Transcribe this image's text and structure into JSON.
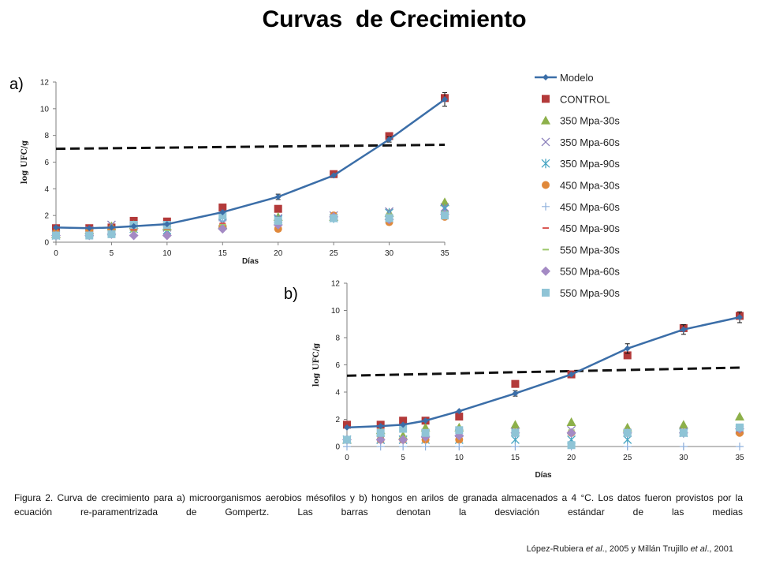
{
  "title": "Curvas  de Crecimiento",
  "panel_labels": [
    "a)",
    "b)"
  ],
  "caption": "Figura 2. Curva de crecimiento para a) microorganismos aerobios mésofilos y b) hongos en arilos de granada almacenados a 4 °C. Los datos fueron provistos por la ecuación re-paramentrizada de Gompertz. Las barras denotan la desviación estándar de las medias",
  "citation": {
    "part1": "López-Rubiera ",
    "etal1": "et al",
    "part2": "., 2005 y Millán Trujillo ",
    "etal2": "et al",
    "part3": "., 2001"
  },
  "legend": [
    {
      "label": "Modelo",
      "marker": "line-diamond",
      "color": "#3b6ea8"
    },
    {
      "label": "CONTROL",
      "marker": "square",
      "color": "#b33a3a"
    },
    {
      "label": "350 Mpa-30s",
      "marker": "triangle",
      "color": "#8db04a"
    },
    {
      "label": "350 Mpa-60s",
      "marker": "x",
      "color": "#8a7fba"
    },
    {
      "label": "350 Mpa-90s",
      "marker": "star",
      "color": "#4aa7c4"
    },
    {
      "label": "450 Mpa-30s",
      "marker": "circle",
      "color": "#e0883a"
    },
    {
      "label": "450 Mpa-60s",
      "marker": "plus",
      "color": "#8fb0dc"
    },
    {
      "label": "450 Mpa-90s",
      "marker": "dash",
      "color": "#d9534f"
    },
    {
      "label": "550 Mpa-30s",
      "marker": "dash",
      "color": "#9cc86a"
    },
    {
      "label": "550 Mpa-60s",
      "marker": "diamond",
      "color": "#a48ac4"
    },
    {
      "label": "550 Mpa-90s",
      "marker": "square",
      "color": "#8fc4d6"
    }
  ],
  "chart_data": [
    {
      "type": "scatter",
      "panel": "a)",
      "xlabel": "Días",
      "ylabel": "log UFC/g",
      "xlim": [
        0,
        35
      ],
      "ylim": [
        0,
        12
      ],
      "xticks": [
        0,
        5,
        10,
        15,
        20,
        25,
        30,
        35
      ],
      "yticks": [
        0,
        2,
        4,
        6,
        8,
        10,
        12
      ],
      "grid": false,
      "legend_position": "right",
      "threshold_line": {
        "x": [
          0,
          35
        ],
        "y": [
          7.0,
          7.3
        ],
        "style": "dashed"
      },
      "series": [
        {
          "name": "Modelo",
          "x": [
            0,
            3,
            5,
            7,
            10,
            15,
            20,
            25,
            30,
            35
          ],
          "y": [
            1.1,
            1.05,
            1.1,
            1.2,
            1.35,
            2.25,
            3.4,
            5.0,
            7.7,
            10.7
          ],
          "errors": [
            0,
            0,
            0,
            0,
            0,
            0,
            0.2,
            0,
            0.2,
            0.5
          ]
        },
        {
          "name": "CONTROL",
          "x": [
            0,
            3,
            5,
            7,
            10,
            15,
            20,
            25,
            30,
            35
          ],
          "y": [
            1.05,
            1.05,
            1.1,
            1.6,
            1.55,
            2.6,
            2.5,
            5.1,
            7.95,
            10.8
          ]
        },
        {
          "name": "350 Mpa-30s",
          "x": [
            0,
            3,
            5,
            7,
            10,
            15,
            20,
            25,
            30,
            35
          ],
          "y": [
            0.6,
            0.9,
            1.2,
            1.3,
            1.2,
            1.3,
            1.9,
            1.9,
            2.2,
            3.0
          ]
        },
        {
          "name": "350 Mpa-60s",
          "x": [
            0,
            3,
            5,
            7,
            10,
            15,
            20,
            25,
            30,
            35
          ],
          "y": [
            0.6,
            0.9,
            1.3,
            1.2,
            1.1,
            1.4,
            1.8,
            2.0,
            2.3,
            2.6
          ]
        },
        {
          "name": "350 Mpa-90s",
          "x": [
            0,
            3,
            5,
            7,
            10,
            15,
            20,
            25,
            30,
            35
          ],
          "y": [
            0.5,
            0.7,
            0.8,
            1.0,
            0.9,
            1.5,
            1.7,
            1.8,
            2.2,
            2.5
          ]
        },
        {
          "name": "450 Mpa-30s",
          "x": [
            0,
            3,
            5,
            7,
            10,
            15,
            20,
            25,
            30,
            35
          ],
          "y": [
            0.7,
            0.9,
            1.0,
            1.0,
            1.2,
            1.2,
            1.0,
            2.0,
            1.5,
            1.9
          ]
        },
        {
          "name": "450 Mpa-60s",
          "x": [
            0,
            3,
            5,
            7,
            10,
            15,
            20,
            25,
            30,
            35
          ],
          "y": [
            0.5,
            0.6,
            0.7,
            0.9,
            1.0,
            1.6,
            1.5,
            1.8,
            2.0,
            2.1
          ]
        },
        {
          "name": "450 Mpa-90s",
          "x": [
            0,
            3,
            5,
            7,
            10,
            15,
            20,
            25,
            30,
            35
          ],
          "y": [
            0.6,
            0.7,
            0.8,
            0.9,
            1.0,
            1.4,
            1.4,
            1.9,
            1.9,
            2.2
          ]
        },
        {
          "name": "550 Mpa-30s",
          "x": [
            0,
            3,
            5,
            7,
            10,
            15,
            20,
            25,
            30,
            35
          ],
          "y": [
            0.6,
            0.7,
            0.7,
            0.8,
            0.9,
            1.3,
            1.5,
            1.8,
            2.1,
            2.3
          ]
        },
        {
          "name": "550 Mpa-60s",
          "x": [
            0,
            3,
            5,
            7,
            10,
            15,
            20,
            25,
            30,
            35
          ],
          "y": [
            0.5,
            0.5,
            0.6,
            0.5,
            0.5,
            1.0,
            1.3,
            1.9,
            1.7,
            2.1
          ]
        },
        {
          "name": "550 Mpa-90s",
          "x": [
            0,
            3,
            5,
            7,
            10,
            15,
            20,
            25,
            30,
            35
          ],
          "y": [
            0.5,
            0.5,
            0.6,
            1.3,
            1.3,
            2.0,
            1.6,
            1.8,
            1.8,
            2.0
          ]
        }
      ]
    },
    {
      "type": "scatter",
      "panel": "b)",
      "xlabel": "Días",
      "ylabel": "log UFC/g",
      "xlim": [
        0,
        35
      ],
      "ylim": [
        0,
        12
      ],
      "xticks": [
        0,
        5,
        10,
        15,
        20,
        25,
        30,
        35
      ],
      "yticks": [
        0,
        2,
        4,
        6,
        8,
        10,
        12
      ],
      "grid": false,
      "threshold_line": {
        "x": [
          0,
          35
        ],
        "y": [
          5.2,
          5.8
        ],
        "style": "dashed"
      },
      "series": [
        {
          "name": "Modelo",
          "x": [
            0,
            3,
            5,
            7,
            10,
            15,
            20,
            25,
            30,
            35
          ],
          "y": [
            1.4,
            1.5,
            1.6,
            1.9,
            2.6,
            3.9,
            5.3,
            7.2,
            8.6,
            9.5
          ],
          "errors": [
            0,
            0,
            0,
            0,
            0,
            0.2,
            0,
            0.35,
            0.35,
            0.4
          ]
        },
        {
          "name": "CONTROL",
          "x": [
            0,
            3,
            5,
            7,
            10,
            15,
            20,
            25,
            30,
            35
          ],
          "y": [
            1.6,
            1.6,
            1.9,
            1.9,
            2.2,
            4.6,
            5.3,
            6.7,
            8.7,
            9.6
          ]
        },
        {
          "name": "350 Mpa-30s",
          "x": [
            0,
            3,
            5,
            7,
            10,
            15,
            20,
            25,
            30,
            35
          ],
          "y": [
            0.5,
            1.2,
            0.8,
            1.4,
            1.4,
            1.6,
            1.8,
            1.4,
            1.6,
            2.2
          ]
        },
        {
          "name": "350 Mpa-60s",
          "x": [
            0,
            3,
            5,
            7,
            10,
            15,
            20,
            25,
            30,
            35
          ],
          "y": [
            0.5,
            0.5,
            0.5,
            1.0,
            1.0,
            1.1,
            1.2,
            1.0,
            1.1,
            1.2
          ]
        },
        {
          "name": "350 Mpa-90s",
          "x": [
            0,
            3,
            5,
            7,
            10,
            15,
            20,
            25,
            30,
            35
          ],
          "y": [
            0.5,
            0.5,
            0.5,
            0.5,
            0.5,
            0.5,
            0.5,
            0.5,
            1.0,
            1.3
          ]
        },
        {
          "name": "450 Mpa-30s",
          "x": [
            0,
            3,
            5,
            7,
            10,
            15,
            20,
            25,
            30,
            35
          ],
          "y": [
            0.5,
            0.5,
            0.5,
            0.5,
            0.5,
            1.0,
            1.0,
            1.0,
            1.0,
            1.0
          ]
        },
        {
          "name": "450 Mpa-60s",
          "x": [
            0,
            3,
            5,
            7,
            10,
            15,
            20,
            25,
            30,
            35
          ],
          "y": [
            0,
            0,
            0,
            0,
            0,
            0,
            0,
            0,
            0,
            0
          ]
        },
        {
          "name": "450 Mpa-90s",
          "x": [
            0,
            3,
            5,
            7,
            10,
            15,
            20,
            25,
            30,
            35
          ],
          "y": [
            0.5,
            0.6,
            0.6,
            0.7,
            0.7,
            0.9,
            1.0,
            1.0,
            1.0,
            1.1
          ]
        },
        {
          "name": "550 Mpa-30s",
          "x": [
            0,
            3,
            5,
            7,
            10,
            15,
            20,
            25,
            30,
            35
          ],
          "y": [
            0.5,
            0.6,
            0.7,
            0.8,
            1.0,
            1.1,
            1.2,
            1.1,
            1.1,
            1.3
          ]
        },
        {
          "name": "550 Mpa-60s",
          "x": [
            0,
            3,
            5,
            7,
            10,
            15,
            20,
            25,
            30,
            35
          ],
          "y": [
            0.5,
            0.5,
            0.5,
            0.7,
            0.8,
            1.0,
            1.0,
            1.0,
            1.0,
            1.3
          ]
        },
        {
          "name": "550 Mpa-90s",
          "x": [
            0,
            3,
            5,
            7,
            10,
            15,
            20,
            25,
            30,
            35
          ],
          "y": [
            0.5,
            1.0,
            1.3,
            1.0,
            1.2,
            1.0,
            0.1,
            1.0,
            1.0,
            1.4
          ]
        }
      ]
    }
  ]
}
